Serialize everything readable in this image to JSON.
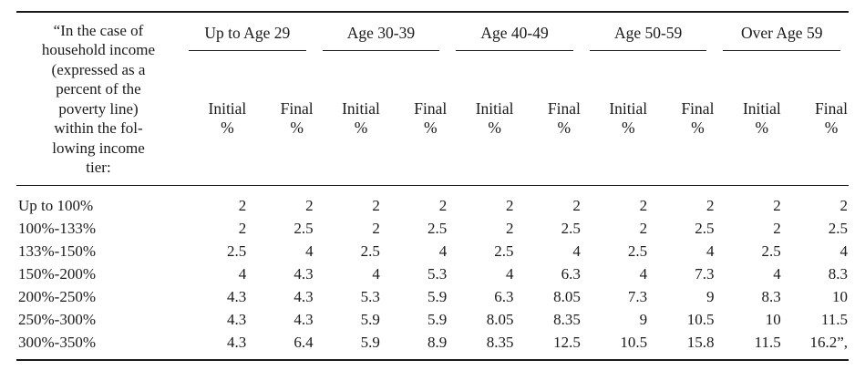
{
  "table": {
    "colors": {
      "text": "#1a1a1a",
      "rule": "#1a1a1a",
      "background": "#ffffff"
    },
    "stub_lines": [
      "“In the case of",
      "household income",
      "(expressed as a",
      "percent of the",
      "poverty line)",
      "within the fol-",
      "lowing income",
      "tier:"
    ],
    "column_groups": [
      "Up to Age 29",
      "Age 30-39",
      "Age 40-49",
      "Age 50-59",
      "Over Age 59"
    ],
    "subheader": {
      "initial": "Initial",
      "final": "Final",
      "percent": "%"
    },
    "rows": [
      {
        "label": "Up to 100%",
        "values": [
          "2",
          "2",
          "2",
          "2",
          "2",
          "2",
          "2",
          "2",
          "2",
          "2"
        ]
      },
      {
        "label": "100%-133%",
        "values": [
          "2",
          "2.5",
          "2",
          "2.5",
          "2",
          "2.5",
          "2",
          "2.5",
          "2",
          "2.5"
        ]
      },
      {
        "label": "133%-150%",
        "values": [
          "2.5",
          "4",
          "2.5",
          "4",
          "2.5",
          "4",
          "2.5",
          "4",
          "2.5",
          "4"
        ]
      },
      {
        "label": "150%-200%",
        "values": [
          "4",
          "4.3",
          "4",
          "5.3",
          "4",
          "6.3",
          "4",
          "7.3",
          "4",
          "8.3"
        ]
      },
      {
        "label": "200%-250%",
        "values": [
          "4.3",
          "4.3",
          "5.3",
          "5.9",
          "6.3",
          "8.05",
          "7.3",
          "9",
          "8.3",
          "10"
        ]
      },
      {
        "label": "250%-300%",
        "values": [
          "4.3",
          "4.3",
          "5.9",
          "5.9",
          "8.05",
          "8.35",
          "9",
          "10.5",
          "10",
          "11.5"
        ]
      },
      {
        "label": "300%-350%",
        "values": [
          "4.3",
          "6.4",
          "5.9",
          "8.9",
          "8.35",
          "12.5",
          "10.5",
          "15.8",
          "11.5",
          "16.2”,"
        ]
      }
    ]
  }
}
